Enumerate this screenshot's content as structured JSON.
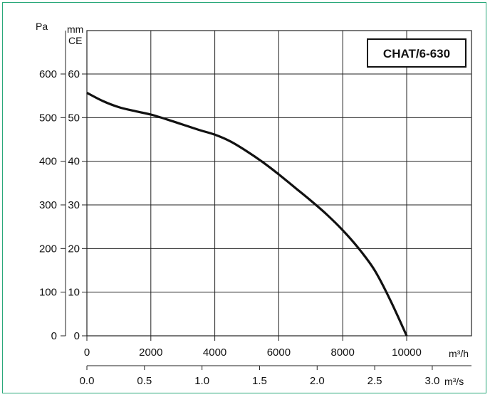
{
  "chart_data": {
    "type": "line",
    "title": "CHAT/6-630",
    "left_axis_unit": "Pa",
    "right_axis_unit_line1": "mm",
    "right_axis_unit_line2": "CE",
    "x_unit_primary": "m³/h",
    "x_unit_secondary": "m³/s",
    "xlim": [
      0,
      10000
    ],
    "ylim_pa": [
      0,
      600
    ],
    "x_ticks_primary": [
      "0",
      "2000",
      "4000",
      "6000",
      "8000",
      "10000"
    ],
    "x_ticks_secondary": [
      "0.0",
      "0.5",
      "1.0",
      "1.5",
      "2.0",
      "2.5",
      "3.0"
    ],
    "x_ticks_secondary_values": [
      0,
      1800,
      3600,
      5400,
      7200,
      9000,
      10800
    ],
    "y_ticks_pa": [
      "0",
      "100",
      "200",
      "300",
      "400",
      "500",
      "600"
    ],
    "y_ticks_mmce": [
      "0",
      "10",
      "20",
      "30",
      "40",
      "50",
      "60"
    ],
    "grid": true,
    "series": [
      {
        "x": [
          0,
          500,
          1000,
          1500,
          2000,
          2500,
          3000,
          3500,
          4000,
          4500,
          5000,
          5500,
          6000,
          6500,
          7000,
          7500,
          8000,
          8500,
          9000,
          9500,
          10000
        ],
        "y": [
          557,
          538,
          524,
          515,
          507,
          496,
          484,
          472,
          461,
          445,
          423,
          398,
          370,
          340,
          310,
          278,
          242,
          200,
          150,
          80,
          0
        ]
      }
    ],
    "colors": {
      "line": "#111111",
      "grid": "#222222",
      "frame": "#2aa87a"
    }
  }
}
